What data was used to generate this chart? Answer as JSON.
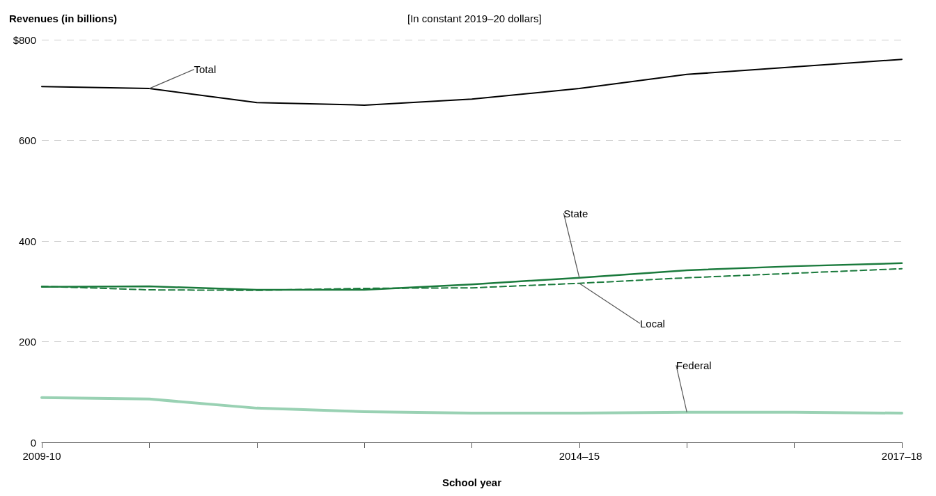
{
  "chart_data": {
    "type": "line",
    "title": "Revenues (in billions)",
    "subtitle": "[In constant 2019–20 dollars]",
    "xlabel": "School year",
    "categories": [
      "2009-10",
      null,
      null,
      null,
      null,
      "2014–15",
      null,
      null,
      "2017–18"
    ],
    "series": [
      {
        "name": "Total",
        "color": "#000000",
        "line_style": "solid",
        "values": [
          707,
          703,
          675,
          670,
          682,
          703,
          731,
          746,
          761
        ]
      },
      {
        "name": "State",
        "color": "#1a7a3c",
        "line_style": "solid",
        "values": [
          309,
          310,
          303,
          303,
          314,
          327,
          342,
          350,
          356
        ]
      },
      {
        "name": "Local",
        "color": "#1a7a3c",
        "line_style": "dashed",
        "values": [
          310,
          303,
          302,
          306,
          307,
          316,
          327,
          336,
          345
        ]
      },
      {
        "name": "Federal",
        "color": "#99d1b3",
        "line_style": "solid",
        "values": [
          89,
          86,
          68,
          61,
          58,
          58,
          60,
          60,
          58
        ]
      }
    ],
    "ylim": [
      0,
      800
    ],
    "yticks": [
      0,
      200,
      400,
      600,
      {
        "value": 800,
        "label": "$800"
      }
    ],
    "grid": "y",
    "legend": false,
    "marker": "none"
  }
}
